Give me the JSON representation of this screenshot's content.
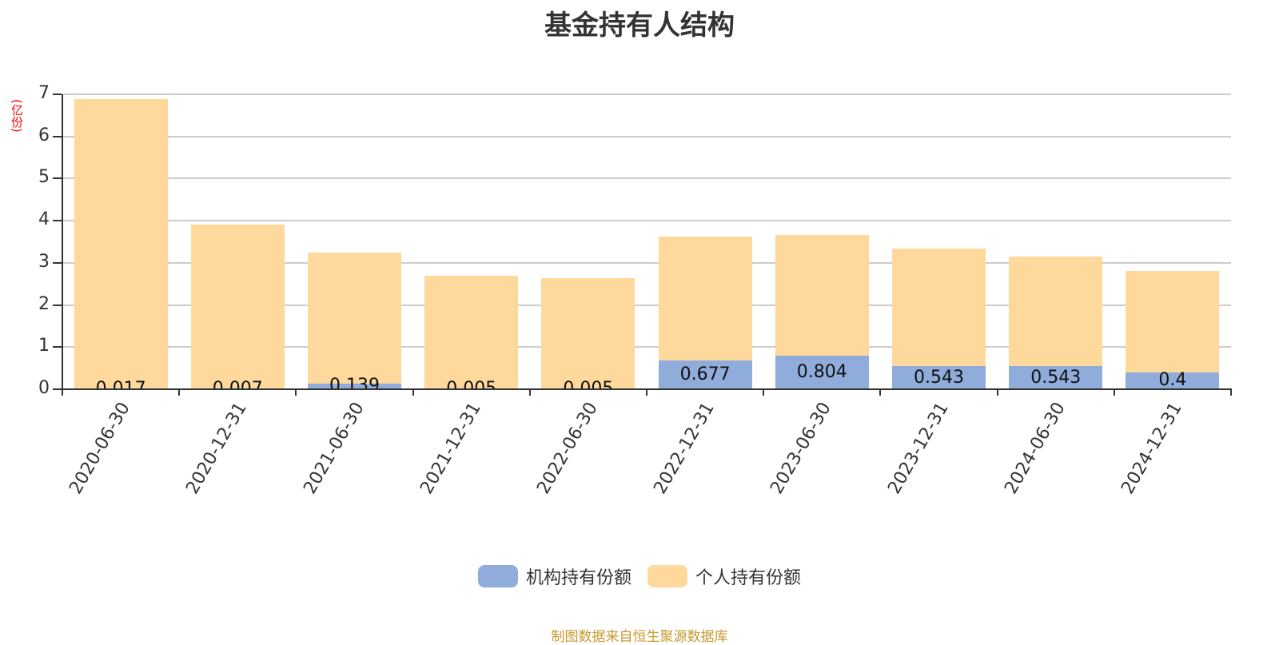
{
  "chart": {
    "title": "基金持有人结构",
    "y_unit": "(亿份)",
    "footer": "制图数据来自恒生聚源数据库",
    "colors": {
      "institutional": "#8facda",
      "personal": "#fed99b"
    },
    "legend": [
      {
        "label": "机构持有份额",
        "color": "#8facda"
      },
      {
        "label": "个人持有份额",
        "color": "#fed99b"
      }
    ],
    "y_ticks": [
      "0",
      "1",
      "2",
      "3",
      "4",
      "5",
      "6",
      "7"
    ]
  },
  "chart_data": {
    "type": "bar",
    "stacked": true,
    "title": "基金持有人结构",
    "xlabel": "",
    "ylabel": "(亿份)",
    "ylim": [
      0,
      7
    ],
    "grid": true,
    "legend_position": "bottom",
    "categories": [
      "2020-06-30",
      "2020-12-31",
      "2021-06-30",
      "2021-12-31",
      "2022-06-30",
      "2022-12-31",
      "2023-06-30",
      "2023-12-31",
      "2024-06-30",
      "2024-12-31"
    ],
    "series": [
      {
        "name": "机构持有份额",
        "values": [
          0.017,
          0.007,
          0.139,
          0.005,
          0.005,
          0.677,
          0.804,
          0.543,
          0.543,
          0.4
        ],
        "labels": [
          "0.017",
          "0.007",
          "0.139",
          "0.005",
          "0.005",
          "0.677",
          "0.804",
          "0.543",
          "0.543",
          "0.4"
        ]
      },
      {
        "name": "个人持有份额",
        "values": [
          6.87,
          3.91,
          3.1,
          2.69,
          2.64,
          2.95,
          2.86,
          2.79,
          2.6,
          2.41
        ]
      }
    ],
    "footer": "制图数据来自恒生聚源数据库"
  }
}
